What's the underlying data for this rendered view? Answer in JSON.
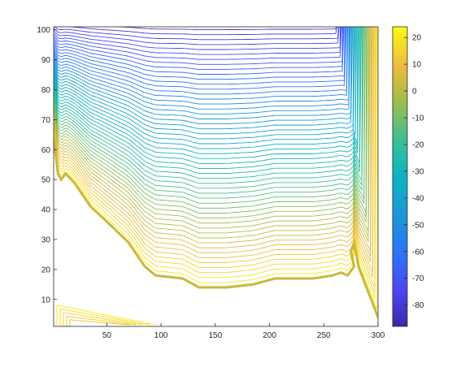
{
  "chart_data": {
    "type": "contour",
    "title": "",
    "xlabel": "",
    "ylabel": "",
    "xlim": [
      1,
      300
    ],
    "ylim": [
      1,
      101
    ],
    "x_ticks": [
      50,
      100,
      150,
      200,
      250,
      300
    ],
    "y_ticks": [
      10,
      20,
      30,
      40,
      50,
      60,
      70,
      80,
      90,
      100
    ],
    "colormap": "parula",
    "colorbar": {
      "range": [
        -88,
        24
      ],
      "ticks": [
        20,
        10,
        0,
        -10,
        -20,
        -30,
        -40,
        -50,
        -60,
        -70,
        -80
      ],
      "placement": "right"
    },
    "contour_levels": {
      "min": -86,
      "max": 20,
      "step": 2
    },
    "features": {
      "boundary": [
        [
          1,
          64
        ],
        [
          5,
          52
        ],
        [
          8,
          50
        ],
        [
          12,
          52
        ],
        [
          20,
          49
        ],
        [
          35,
          41
        ],
        [
          50,
          36
        ],
        [
          70,
          29
        ],
        [
          85,
          21
        ],
        [
          95,
          18
        ],
        [
          120,
          17
        ],
        [
          135,
          14
        ],
        [
          160,
          14
        ],
        [
          185,
          15
        ],
        [
          205,
          17
        ],
        [
          240,
          17
        ],
        [
          258,
          18
        ],
        [
          266,
          19
        ],
        [
          272,
          18
        ],
        [
          278,
          21
        ],
        [
          275,
          26
        ],
        [
          278,
          29
        ],
        [
          282,
          21
        ],
        [
          300,
          4
        ]
      ],
      "vertical_band_x": [
        220,
        300
      ],
      "corner_region_x": [
        4,
        95
      ],
      "corner_region_y": [
        1,
        8
      ]
    },
    "grid": false
  }
}
